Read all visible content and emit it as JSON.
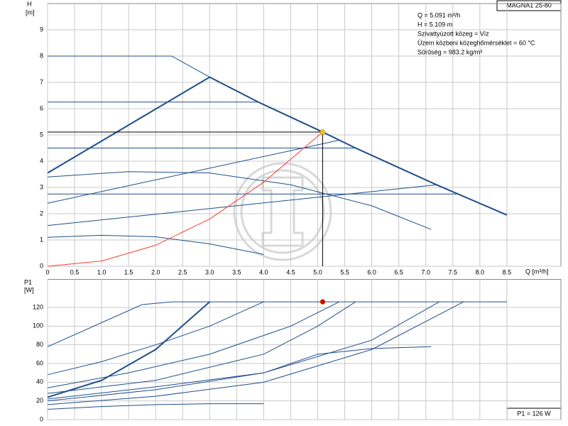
{
  "chart_data": [
    {
      "type": "line",
      "header": "MAGNA1 25-80",
      "ylabel": "H",
      "yunit": "[m]",
      "xlabel": "Q [m³/h]",
      "annotations": [
        "Q = 5.091 m³/h",
        "H = 5.109 m",
        "Szivattyúzott közeg = Víz",
        "Üzem közbeni közeghőmérséklet = 60 °C",
        "Sűrűség = 983.2 kg/m³"
      ],
      "xlim": [
        0,
        9.5
      ],
      "ylim": [
        0,
        10
      ],
      "xticks": [
        0,
        0.5,
        {
          "value": 1,
          "label": "1.0"
        },
        1.5,
        {
          "value": 2,
          "label": "2.0"
        },
        2.5,
        {
          "value": 3,
          "label": "3.0"
        },
        3.5,
        {
          "value": 4,
          "label": "4.0"
        },
        4.5,
        {
          "value": 5,
          "label": "5.0"
        },
        5.5,
        {
          "value": 6,
          "label": "6.0"
        },
        6.5,
        {
          "value": 7,
          "label": "7.0"
        },
        7.5,
        {
          "value": 8,
          "label": "8.0"
        },
        8.5
      ],
      "yticks": [
        0,
        1,
        2,
        3,
        4,
        5,
        6,
        7,
        8,
        9
      ],
      "grid": true,
      "series": [
        {
          "color": "#1f4e8c",
          "width": 1,
          "x": [
            0,
            2.3,
            3.0
          ],
          "values": [
            8,
            8,
            7.2
          ]
        },
        {
          "color": "#1f4e8c",
          "width": 2,
          "x": [
            0,
            3.0
          ],
          "values": [
            3.55,
            7.2
          ]
        },
        {
          "color": "#1f4e8c",
          "width": 2,
          "x": [
            3.0,
            3.9,
            5.09,
            5.7,
            7.2,
            8.5
          ],
          "values": [
            7.2,
            6.25,
            5.11,
            4.5,
            3.1,
            1.95
          ]
        },
        {
          "color": "#1f4e8c",
          "width": 1,
          "x": [
            0,
            3.9
          ],
          "values": [
            6.25,
            6.25
          ]
        },
        {
          "color": "#1f4e8c",
          "width": 1,
          "x": [
            0,
            5.7
          ],
          "values": [
            4.5,
            4.5
          ]
        },
        {
          "color": "#1f4e8c",
          "width": 1,
          "x": [
            0,
            7.6
          ],
          "values": [
            2.75,
            2.75
          ]
        },
        {
          "color": "#1f4e8c",
          "width": 1,
          "x": [
            0,
            5.4
          ],
          "values": [
            2.4,
            4.8
          ]
        },
        {
          "color": "#1f4e8c",
          "width": 1,
          "x": [
            0,
            7.2
          ],
          "values": [
            1.55,
            3.1
          ]
        },
        {
          "color": "#1f4e8c",
          "width": 1,
          "x": [
            0,
            1.5,
            3,
            4.5,
            6,
            7.1
          ],
          "values": [
            3.4,
            3.6,
            3.55,
            3.1,
            2.3,
            1.4
          ]
        },
        {
          "color": "#1f4e8c",
          "width": 1,
          "x": [
            0,
            1,
            2,
            3,
            4
          ],
          "values": [
            1.1,
            1.18,
            1.12,
            0.85,
            0.45
          ]
        },
        {
          "color": "#000000",
          "width": 1,
          "x": [
            0,
            5.091,
            5.091
          ],
          "values": [
            5.109,
            5.109,
            0
          ]
        },
        {
          "color": "#ff3b30",
          "width": 1,
          "x": [
            0,
            1,
            2,
            3,
            4,
            5.091
          ],
          "values": [
            0,
            0.2,
            0.8,
            1.8,
            3.2,
            5.109
          ]
        }
      ],
      "points": [
        {
          "x": 5.091,
          "y": 5.109,
          "color": "#f5c518"
        }
      ]
    },
    {
      "type": "line",
      "ylabel": "P1",
      "yunit": "[W]",
      "annotation": "P1 = 126 W",
      "xlim": [
        0,
        9.5
      ],
      "ylim": [
        0,
        150
      ],
      "yticks": [
        0,
        20,
        40,
        60,
        80,
        100,
        120
      ],
      "grid": true,
      "series": [
        {
          "color": "#1f4e8c",
          "width": 1,
          "x": [
            0,
            1.75,
            2.3,
            8.5
          ],
          "values": [
            78,
            123,
            126,
            126
          ]
        },
        {
          "color": "#1f4e8c",
          "width": 2,
          "x": [
            0,
            1,
            2,
            3
          ],
          "values": [
            24,
            42,
            75,
            126
          ]
        },
        {
          "color": "#1f4e8c",
          "width": 1,
          "x": [
            0,
            1,
            2,
            3,
            4
          ],
          "values": [
            48,
            62,
            80,
            100,
            126
          ]
        },
        {
          "color": "#1f4e8c",
          "width": 1,
          "x": [
            0,
            1.5,
            3,
            4.5,
            5.4
          ],
          "values": [
            34,
            50,
            70,
            100,
            126
          ]
        },
        {
          "color": "#1f4e8c",
          "width": 1,
          "x": [
            0,
            2,
            4,
            5,
            5.7
          ],
          "values": [
            28,
            42,
            70,
            100,
            126
          ]
        },
        {
          "color": "#1f4e8c",
          "width": 1,
          "x": [
            0,
            2,
            4,
            6,
            7.25
          ],
          "values": [
            20,
            32,
            50,
            85,
            126
          ]
        },
        {
          "color": "#1f4e8c",
          "width": 1,
          "x": [
            0,
            2,
            4,
            6,
            7.7
          ],
          "values": [
            16,
            25,
            40,
            75,
            126
          ]
        },
        {
          "color": "#1f4e8c",
          "width": 1,
          "x": [
            0,
            2,
            4,
            5,
            6,
            7.1
          ],
          "values": [
            22,
            35,
            50,
            70,
            76,
            78
          ]
        },
        {
          "color": "#1f4e8c",
          "width": 1,
          "x": [
            0,
            1,
            2,
            3,
            4
          ],
          "values": [
            11,
            14,
            16,
            17,
            17
          ]
        }
      ],
      "points": [
        {
          "x": 5.091,
          "y": 126,
          "color": "#e00000"
        }
      ]
    }
  ]
}
